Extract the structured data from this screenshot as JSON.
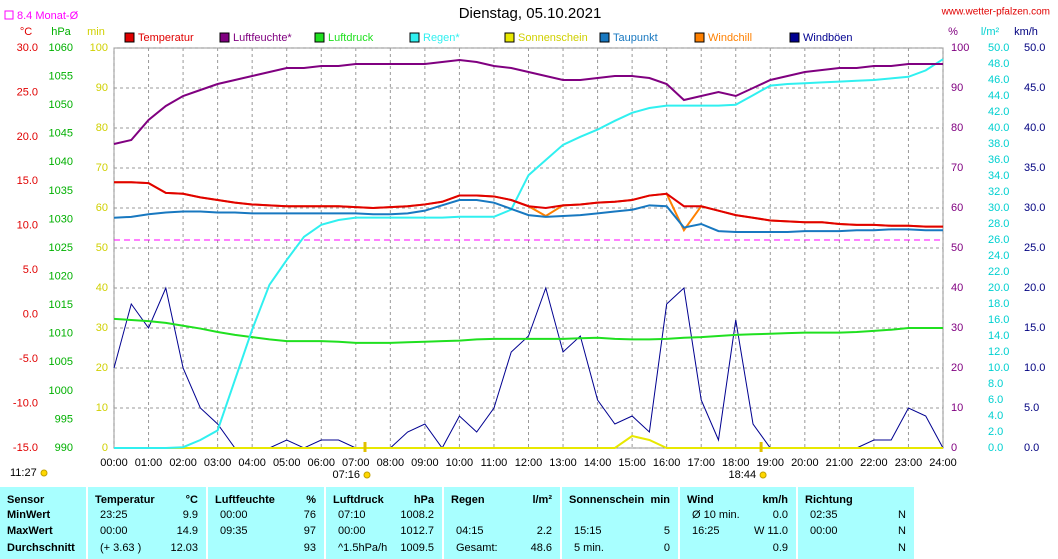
{
  "chart_data": {
    "type": "line",
    "title": "Dienstag, 05.10.2021",
    "source": "www.wetter-pfalzen.com",
    "reference_line": {
      "label": "8.4 Monat-Ø",
      "value": 8.4,
      "color": "#ff00ff"
    },
    "current_time": "11:27",
    "sunrise": "07:16",
    "sunset": "18:44",
    "grid": true,
    "xlim": [
      0,
      24
    ],
    "xticks": [
      {
        "value": 0,
        "label": "00:00"
      },
      {
        "value": 1,
        "label": "01:00"
      },
      {
        "value": 2,
        "label": "02:00"
      },
      {
        "value": 3,
        "label": "03:00"
      },
      {
        "value": 4,
        "label": "04:00"
      },
      {
        "value": 5,
        "label": "05:00"
      },
      {
        "value": 6,
        "label": "06:00"
      },
      {
        "value": 7,
        "label": "07:00"
      },
      {
        "value": 8,
        "label": "08:00"
      },
      {
        "value": 9,
        "label": "09:00"
      },
      {
        "value": 10,
        "label": "10:00"
      },
      {
        "value": 11,
        "label": "11:00"
      },
      {
        "value": 12,
        "label": "12:00"
      },
      {
        "value": 13,
        "label": "13:00"
      },
      {
        "value": 14,
        "label": "14:00"
      },
      {
        "value": 15,
        "label": "15:00"
      },
      {
        "value": 16,
        "label": "16:00"
      },
      {
        "value": 17,
        "label": "17:00"
      },
      {
        "value": 18,
        "label": "18:00"
      },
      {
        "value": 19,
        "label": "19:00"
      },
      {
        "value": 20,
        "label": "20:00"
      },
      {
        "value": 21,
        "label": "21:00"
      },
      {
        "value": 22,
        "label": "22:00"
      },
      {
        "value": 23,
        "label": "23:00"
      },
      {
        "value": 24,
        "label": "24:00"
      }
    ],
    "axes": [
      {
        "label": "°C",
        "side": "left",
        "color": "#e00000",
        "lim": [
          -15,
          30
        ],
        "ticks": [
          {
            "value": -15,
            "label": "-15.0"
          },
          {
            "value": -10,
            "label": "-10.0"
          },
          {
            "value": -5,
            "label": "-5.0"
          },
          {
            "value": 0,
            "label": "0.0"
          },
          {
            "value": 5,
            "label": "5.0"
          },
          {
            "value": 10,
            "label": "10.0"
          },
          {
            "value": 15,
            "label": "15.0"
          },
          {
            "value": 20,
            "label": "20.0"
          },
          {
            "value": 25,
            "label": "25.0"
          },
          {
            "value": 30,
            "label": "30.0"
          }
        ]
      },
      {
        "label": "hPa",
        "side": "left",
        "color": "#00b000",
        "lim": [
          990,
          1060
        ],
        "ticks": [
          990,
          995,
          1000,
          1005,
          1010,
          1015,
          1020,
          1025,
          1030,
          1035,
          1040,
          1045,
          1050,
          1055,
          1060
        ]
      },
      {
        "label": "min",
        "side": "left",
        "color": "#d0d000",
        "lim": [
          0,
          100
        ],
        "ticks": [
          0,
          10,
          20,
          30,
          40,
          50,
          60,
          70,
          80,
          90,
          100
        ]
      },
      {
        "label": "%",
        "side": "right",
        "color": "#800080",
        "lim": [
          0,
          100
        ],
        "ticks": [
          0,
          10,
          20,
          30,
          40,
          50,
          60,
          70,
          80,
          90,
          100
        ]
      },
      {
        "label": "l/m²",
        "side": "right",
        "color": "#00d0d0",
        "lim": [
          0,
          50
        ],
        "ticks": [
          {
            "value": 0,
            "label": "0.0"
          },
          {
            "value": 2,
            "label": "2.0"
          },
          {
            "value": 4,
            "label": "4.0"
          },
          {
            "value": 6,
            "label": "6.0"
          },
          {
            "value": 8,
            "label": "8.0"
          },
          {
            "value": 10,
            "label": "10.0"
          },
          {
            "value": 12,
            "label": "12.0"
          },
          {
            "value": 14,
            "label": "14.0"
          },
          {
            "value": 16,
            "label": "16.0"
          },
          {
            "value": 18,
            "label": "18.0"
          },
          {
            "value": 20,
            "label": "20.0"
          },
          {
            "value": 22,
            "label": "22.0"
          },
          {
            "value": 24,
            "label": "24.0"
          },
          {
            "value": 26,
            "label": "26.0"
          },
          {
            "value": 28,
            "label": "28.0"
          },
          {
            "value": 30,
            "label": "30.0"
          },
          {
            "value": 32,
            "label": "32.0"
          },
          {
            "value": 34,
            "label": "34.0"
          },
          {
            "value": 36,
            "label": "36.0"
          },
          {
            "value": 38,
            "label": "38.0"
          },
          {
            "value": 40,
            "label": "40.0"
          },
          {
            "value": 42,
            "label": "42.0"
          },
          {
            "value": 44,
            "label": "44.0"
          },
          {
            "value": 46,
            "label": "46.0"
          },
          {
            "value": 48,
            "label": "48.0"
          },
          {
            "value": 50,
            "label": "50.0"
          }
        ]
      },
      {
        "label": "km/h",
        "side": "right",
        "color": "#000080",
        "lim": [
          0,
          50
        ],
        "ticks": [
          {
            "value": 0,
            "label": "0.0"
          },
          {
            "value": 5,
            "label": "5.0"
          },
          {
            "value": 10,
            "label": "10.0"
          },
          {
            "value": 15,
            "label": "15.0"
          },
          {
            "value": 20,
            "label": "20.0"
          },
          {
            "value": 25,
            "label": "25.0"
          },
          {
            "value": 30,
            "label": "30.0"
          },
          {
            "value": 35,
            "label": "35.0"
          },
          {
            "value": 40,
            "label": "40.0"
          },
          {
            "value": 45,
            "label": "45.0"
          },
          {
            "value": 50,
            "label": "50.0"
          }
        ]
      }
    ],
    "x": [
      0,
      0.5,
      1,
      1.5,
      2,
      2.5,
      3,
      3.5,
      4,
      4.5,
      5,
      5.5,
      6,
      6.5,
      7,
      7.5,
      8,
      8.5,
      9,
      9.5,
      10,
      10.5,
      11,
      11.5,
      12,
      12.5,
      13,
      13.5,
      14,
      14.5,
      15,
      15.5,
      16,
      16.5,
      17,
      17.5,
      18,
      18.5,
      19,
      19.5,
      20,
      20.5,
      21,
      21.5,
      22,
      22.5,
      23,
      23.5,
      24
    ],
    "series": [
      {
        "name": "Temperatur",
        "color": "#e00000",
        "axis": 0,
        "values": [
          14.9,
          14.9,
          14.8,
          13.7,
          13.6,
          13.2,
          12.9,
          12.6,
          12.4,
          12.3,
          12.2,
          12.2,
          12.2,
          12.2,
          12.1,
          12.0,
          12.1,
          12.2,
          12.4,
          12.7,
          13.4,
          13.4,
          13.3,
          12.9,
          12.2,
          12.0,
          12.3,
          12.4,
          12.6,
          12.7,
          12.9,
          13.4,
          13.6,
          12.2,
          12.2,
          11.7,
          11.2,
          10.9,
          10.6,
          10.5,
          10.4,
          10.4,
          10.2,
          10.1,
          10.1,
          10.0,
          10.0,
          9.9,
          9.9
        ]
      },
      {
        "name": "Luftfeuchte*",
        "color": "#800080",
        "axis": 3,
        "values": [
          76,
          77,
          82,
          85.5,
          88,
          89.5,
          91,
          92,
          93,
          94,
          95,
          95,
          95.5,
          95.5,
          96,
          96,
          96,
          96,
          96,
          96.5,
          97,
          96.5,
          95.5,
          95,
          94,
          93,
          92,
          92,
          92.5,
          93,
          93,
          92.5,
          91,
          87,
          88,
          89,
          88,
          90,
          92,
          93,
          94,
          94.5,
          95,
          95,
          95.5,
          95.5,
          96,
          96,
          96
        ]
      },
      {
        "name": "Luftdruck",
        "color": "#20e020",
        "axis": 1,
        "values": [
          1012.6,
          1012.4,
          1012.2,
          1011.9,
          1011.4,
          1010.9,
          1010.3,
          1009.8,
          1009.4,
          1009.0,
          1008.7,
          1008.7,
          1008.7,
          1008.6,
          1008.4,
          1008.4,
          1008.4,
          1008.5,
          1008.6,
          1008.7,
          1008.8,
          1009.0,
          1009.1,
          1009.1,
          1009.1,
          1009.1,
          1009.1,
          1009.2,
          1009.3,
          1009.1,
          1009.0,
          1009.0,
          1009.1,
          1009.3,
          1009.4,
          1009.6,
          1009.8,
          1009.9,
          1010.0,
          1010.1,
          1010.2,
          1010.2,
          1010.2,
          1010.3,
          1010.5,
          1010.7,
          1011.0,
          1011.0,
          1011.0
        ]
      },
      {
        "name": "Regen*",
        "color": "#30f0f0",
        "axis": 4,
        "values": [
          0,
          0,
          0,
          0,
          0.1,
          1.0,
          2.2,
          8.5,
          14.8,
          20.4,
          23.5,
          26.4,
          27.9,
          28.5,
          28.8,
          28.8,
          28.8,
          28.8,
          28.8,
          28.8,
          28.9,
          28.9,
          28.9,
          29.8,
          34.1,
          36,
          37.9,
          38.9,
          39.8,
          40.9,
          41.9,
          42.5,
          42.8,
          42.8,
          42.8,
          42.8,
          42.9,
          44.1,
          45.3,
          45.5,
          45.6,
          45.7,
          45.8,
          45.9,
          46,
          46.2,
          46.4,
          47.2,
          48.6
        ]
      },
      {
        "name": "Sonnenschein",
        "color": "#e8e800",
        "axis": 2,
        "values": [
          0,
          0,
          0,
          0,
          0,
          0,
          0,
          0,
          0,
          0,
          0,
          0,
          0,
          0,
          0,
          0,
          0,
          0,
          0,
          0,
          0,
          0,
          0,
          0,
          0,
          0,
          0,
          0,
          0,
          0,
          3,
          2,
          0,
          0,
          0,
          0,
          0,
          0,
          0,
          0,
          0,
          0,
          0,
          0,
          0,
          0,
          0,
          0,
          0
        ]
      },
      {
        "name": "Taupunkt",
        "color": "#1878c0",
        "axis": 0,
        "values": [
          10.9,
          11.0,
          11.3,
          11.5,
          11.6,
          11.6,
          11.5,
          11.5,
          11.4,
          11.4,
          11.4,
          11.4,
          11.4,
          11.4,
          11.4,
          11.3,
          11.3,
          11.4,
          11.7,
          12.3,
          12.9,
          12.9,
          12.6,
          11.9,
          11.2,
          11.0,
          11.1,
          11.2,
          11.4,
          11.6,
          11.8,
          12.3,
          12.2,
          9.8,
          10.2,
          9.4,
          9.3,
          9.3,
          9.3,
          9.3,
          9.4,
          9.4,
          9.4,
          9.5,
          9.5,
          9.6,
          9.6,
          9.5,
          9.5
        ]
      },
      {
        "name": "Windchill",
        "color": "#ff8000",
        "axis": 0,
        "values": [
          14.9,
          14.9,
          14.8,
          13.7,
          13.6,
          13.2,
          12.9,
          12.6,
          12.4,
          12.3,
          12.2,
          12.2,
          12.2,
          12.2,
          12.1,
          12.0,
          12.1,
          12.2,
          12.4,
          12.7,
          13.4,
          13.4,
          13.3,
          12.9,
          12.2,
          11.1,
          12.3,
          12.4,
          12.6,
          12.7,
          12.9,
          13.4,
          13.6,
          9.5,
          12.2,
          11.7,
          11.2,
          10.9,
          10.6,
          10.5,
          10.4,
          10.4,
          10.2,
          10.1,
          10.1,
          10.0,
          10.0,
          9.9,
          9.9
        ]
      },
      {
        "name": "Windböen",
        "color": "#000090",
        "axis": 5,
        "values": [
          10,
          18,
          15,
          20,
          10,
          5,
          3,
          0,
          0,
          0,
          1,
          0,
          1,
          1,
          0,
          0,
          0,
          2,
          3,
          0,
          4,
          2,
          5,
          12,
          14,
          20,
          12,
          14,
          6,
          3,
          4,
          2,
          18,
          20,
          6,
          1,
          16,
          3,
          0,
          0,
          0,
          0,
          0,
          0,
          1,
          1,
          5,
          4,
          0
        ]
      }
    ]
  },
  "table": {
    "header": [
      [
        "Sensor"
      ],
      [
        "Temperatur",
        "°C"
      ],
      [
        "Luftfeuchte",
        "%"
      ],
      [
        "Luftdruck",
        "hPa"
      ],
      [
        "Regen",
        "l/m²"
      ],
      [
        "Sonnenschein",
        "min"
      ],
      [
        "Wind",
        "km/h"
      ],
      [
        "Richtung"
      ]
    ],
    "rows": [
      {
        "label": "MinWert",
        "cells": [
          [
            "23:25",
            "9.9"
          ],
          [
            "00:00",
            "76"
          ],
          [
            "07:10",
            "1008.2"
          ],
          [
            null,
            null
          ],
          [
            null,
            null
          ],
          [
            "Ø 10 min.",
            "0.0"
          ],
          [
            "02:35",
            "N"
          ]
        ]
      },
      {
        "label": "MaxWert",
        "cells": [
          [
            "00:00",
            "14.9"
          ],
          [
            "09:35",
            "97"
          ],
          [
            "00:00",
            "1012.7"
          ],
          [
            "04:15",
            "2.2"
          ],
          [
            "15:15",
            "5"
          ],
          [
            "16:25",
            "W 11.0"
          ],
          [
            "00:00",
            "N"
          ]
        ]
      },
      {
        "label": "Durchschnitt",
        "cells": [
          [
            "(+ 3.63 )",
            "12.03"
          ],
          [
            null,
            "93"
          ],
          [
            "^1.5hPa/h",
            "1009.5"
          ],
          [
            "Gesamt:",
            "48.6"
          ],
          [
            "5 min.",
            "0"
          ],
          [
            null,
            "0.9"
          ],
          [
            null,
            "N"
          ]
        ]
      }
    ]
  }
}
